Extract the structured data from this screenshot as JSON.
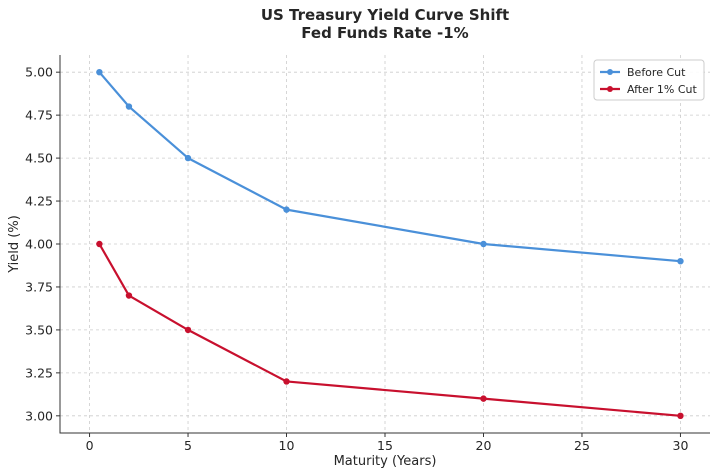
{
  "chart_data": {
    "type": "line",
    "title": "US Treasury Yield Curve Shift",
    "subtitle": "Fed Funds Rate -1%",
    "xlabel": "Maturity (Years)",
    "ylabel": "Yield (%)",
    "x": [
      0.5,
      2,
      5,
      10,
      20,
      30
    ],
    "xlim": [
      -1.5,
      31.5
    ],
    "ylim": [
      2.9,
      5.1
    ],
    "xticks": [
      0,
      5,
      10,
      15,
      20,
      25,
      30
    ],
    "xtick_labels": [
      "0",
      "5",
      "10",
      "15",
      "20",
      "25",
      "30"
    ],
    "yticks": [
      3.0,
      3.25,
      3.5,
      3.75,
      4.0,
      4.25,
      4.5,
      4.75,
      5.0
    ],
    "ytick_labels": [
      "3.00",
      "3.25",
      "3.50",
      "3.75",
      "4.00",
      "4.25",
      "4.50",
      "4.75",
      "5.00"
    ],
    "grid": true,
    "legend_position": "top-right",
    "series": [
      {
        "name": "Before Cut",
        "color": "#4a90d9",
        "values": [
          5.0,
          4.8,
          4.5,
          4.2,
          4.0,
          3.9
        ]
      },
      {
        "name": "After 1% Cut",
        "color": "#c8102e",
        "values": [
          4.0,
          3.7,
          3.5,
          3.2,
          3.1,
          3.0
        ]
      }
    ]
  }
}
